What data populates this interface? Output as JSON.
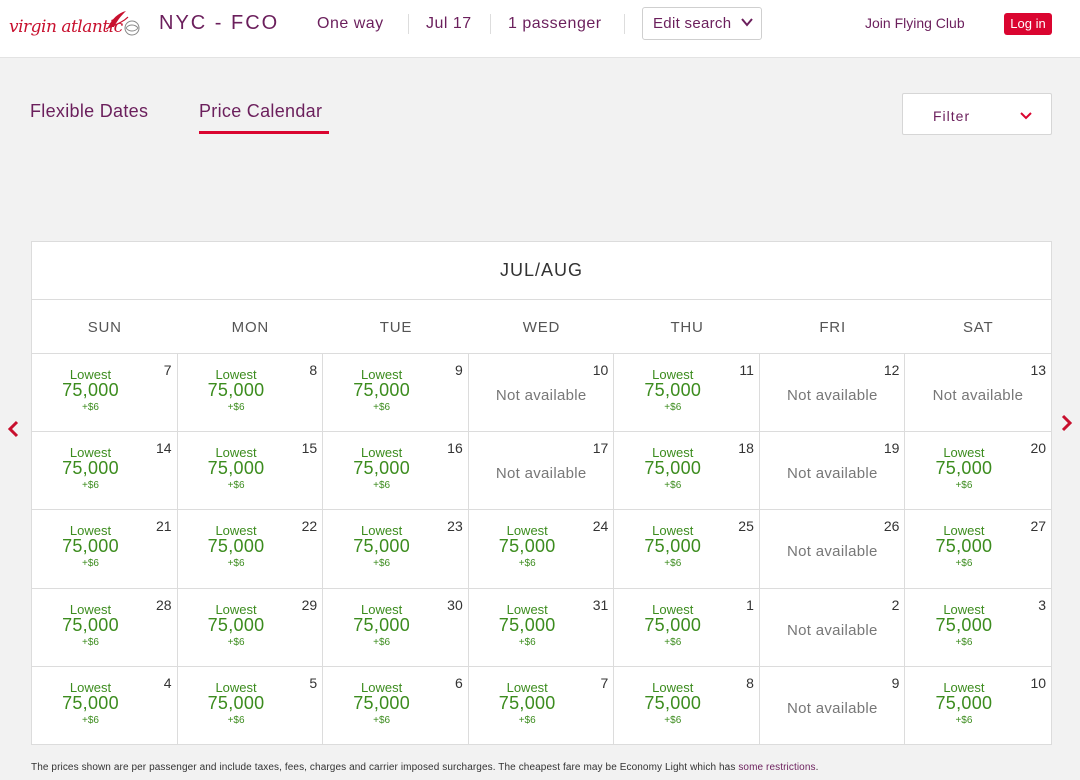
{
  "header": {
    "logo_text": "virgin atlantic",
    "route": "NYC - FCO",
    "trip_type": "One way",
    "date": "Jul 17",
    "passengers": "1 passenger",
    "edit_search": "Edit search",
    "join": "Join Flying Club",
    "login": "Log in"
  },
  "tabs": {
    "flexible": "Flexible Dates",
    "calendar": "Price Calendar"
  },
  "filter": {
    "label": "Filter"
  },
  "calendar": {
    "title": "JUL/AUG",
    "days": [
      "SUN",
      "MON",
      "TUE",
      "WED",
      "THU",
      "FRI",
      "SAT"
    ],
    "lowest_label": "Lowest",
    "na_label": "Not available",
    "cells": [
      {
        "day": "7",
        "price": "75,000",
        "fee": "+$6"
      },
      {
        "day": "8",
        "price": "75,000",
        "fee": "+$6"
      },
      {
        "day": "9",
        "price": "75,000",
        "fee": "+$6"
      },
      {
        "day": "10",
        "price": null,
        "fee": null
      },
      {
        "day": "11",
        "price": "75,000",
        "fee": "+$6"
      },
      {
        "day": "12",
        "price": null,
        "fee": null
      },
      {
        "day": "13",
        "price": null,
        "fee": null
      },
      {
        "day": "14",
        "price": "75,000",
        "fee": "+$6"
      },
      {
        "day": "15",
        "price": "75,000",
        "fee": "+$6"
      },
      {
        "day": "16",
        "price": "75,000",
        "fee": "+$6"
      },
      {
        "day": "17",
        "price": null,
        "fee": null
      },
      {
        "day": "18",
        "price": "75,000",
        "fee": "+$6"
      },
      {
        "day": "19",
        "price": null,
        "fee": null
      },
      {
        "day": "20",
        "price": "75,000",
        "fee": "+$6"
      },
      {
        "day": "21",
        "price": "75,000",
        "fee": "+$6"
      },
      {
        "day": "22",
        "price": "75,000",
        "fee": "+$6"
      },
      {
        "day": "23",
        "price": "75,000",
        "fee": "+$6"
      },
      {
        "day": "24",
        "price": "75,000",
        "fee": "+$6"
      },
      {
        "day": "25",
        "price": "75,000",
        "fee": "+$6"
      },
      {
        "day": "26",
        "price": null,
        "fee": null
      },
      {
        "day": "27",
        "price": "75,000",
        "fee": "+$6"
      },
      {
        "day": "28",
        "price": "75,000",
        "fee": "+$6"
      },
      {
        "day": "29",
        "price": "75,000",
        "fee": "+$6"
      },
      {
        "day": "30",
        "price": "75,000",
        "fee": "+$6"
      },
      {
        "day": "31",
        "price": "75,000",
        "fee": "+$6"
      },
      {
        "day": "1",
        "price": "75,000",
        "fee": "+$6"
      },
      {
        "day": "2",
        "price": null,
        "fee": null
      },
      {
        "day": "3",
        "price": "75,000",
        "fee": "+$6"
      },
      {
        "day": "4",
        "price": "75,000",
        "fee": "+$6"
      },
      {
        "day": "5",
        "price": "75,000",
        "fee": "+$6"
      },
      {
        "day": "6",
        "price": "75,000",
        "fee": "+$6"
      },
      {
        "day": "7",
        "price": "75,000",
        "fee": "+$6"
      },
      {
        "day": "8",
        "price": "75,000",
        "fee": "+$6"
      },
      {
        "day": "9",
        "price": null,
        "fee": null
      },
      {
        "day": "10",
        "price": "75,000",
        "fee": "+$6"
      }
    ]
  },
  "footnote": {
    "text": "The prices shown are per passenger and include taxes, fees, charges and carrier imposed surcharges. The cheapest fare may be Economy Light which has ",
    "link": "some restrictions",
    "end": "."
  },
  "colors": {
    "brand_purple": "#6b1f5c",
    "brand_red": "#da0530",
    "price_green": "#3c8c1e"
  },
  "icons": [
    "virgin-logo-icon",
    "alliance-icon",
    "chevron-down-icon",
    "chevron-left-icon",
    "chevron-right-icon"
  ]
}
